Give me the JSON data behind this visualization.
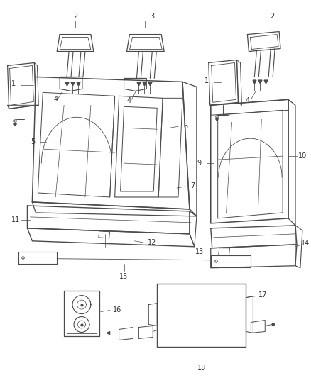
{
  "background_color": "#ffffff",
  "line_color": "#4a4a4a",
  "lw_main": 1.0,
  "lw_thin": 0.5,
  "lw_med": 0.7,
  "label_fs": 7,
  "figsize": [
    4.38,
    5.33
  ],
  "dpi": 100
}
